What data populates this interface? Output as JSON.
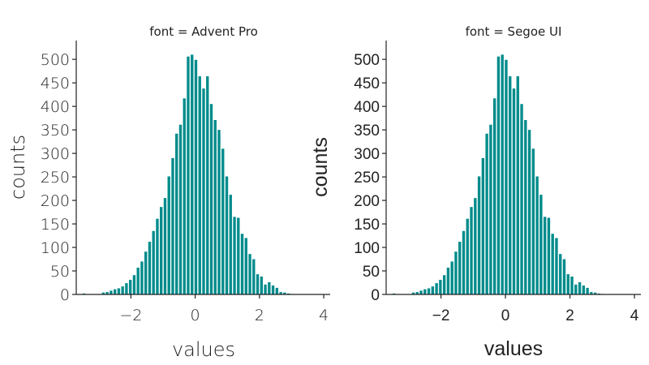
{
  "chart_data": [
    {
      "type": "bar",
      "title": "font = Advent Pro",
      "xlabel": "values",
      "ylabel": "counts",
      "color": "#008b8b",
      "xlim": [
        -3.7,
        4.2
      ],
      "ylim": [
        0,
        540
      ],
      "xticks": [
        "−2",
        "0",
        "2",
        "4"
      ],
      "xtick_values": [
        -2,
        0,
        2,
        4
      ],
      "yticks": [
        "0",
        "50",
        "100",
        "150",
        "200",
        "250",
        "300",
        "350",
        "400",
        "450",
        "500"
      ],
      "ytick_values": [
        0,
        50,
        100,
        150,
        200,
        250,
        300,
        350,
        400,
        450,
        500
      ],
      "grid": false,
      "bin_start": -3.5,
      "bin_width": 0.12,
      "values": [
        2,
        0,
        0,
        0,
        0,
        4,
        5,
        8,
        11,
        13,
        17,
        24,
        31,
        41,
        57,
        70,
        91,
        112,
        135,
        161,
        186,
        205,
        251,
        290,
        342,
        361,
        417,
        506,
        510,
        499,
        464,
        438,
        464,
        405,
        371,
        350,
        310,
        251,
        212,
        165,
        163,
        129,
        120,
        86,
        75,
        43,
        38,
        21,
        26,
        19,
        14,
        5,
        4,
        2,
        1,
        0
      ]
    },
    {
      "type": "bar",
      "title": "font = Segoe UI",
      "xlabel": "values",
      "ylabel": "counts",
      "color": "#008b8b",
      "xlim": [
        -3.7,
        4.2
      ],
      "ylim": [
        0,
        540
      ],
      "xticks": [
        "−2",
        "0",
        "2",
        "4"
      ],
      "xtick_values": [
        -2,
        0,
        2,
        4
      ],
      "yticks": [
        "0",
        "50",
        "100",
        "150",
        "200",
        "250",
        "300",
        "350",
        "400",
        "450",
        "500"
      ],
      "ytick_values": [
        0,
        50,
        100,
        150,
        200,
        250,
        300,
        350,
        400,
        450,
        500
      ],
      "grid": false,
      "bin_start": -3.5,
      "bin_width": 0.12,
      "values": [
        2,
        0,
        0,
        0,
        0,
        4,
        5,
        8,
        11,
        13,
        17,
        24,
        31,
        41,
        57,
        70,
        91,
        112,
        135,
        161,
        186,
        205,
        251,
        290,
        342,
        361,
        417,
        506,
        510,
        499,
        464,
        438,
        464,
        405,
        371,
        350,
        310,
        251,
        212,
        165,
        163,
        129,
        120,
        86,
        75,
        43,
        38,
        21,
        26,
        19,
        14,
        5,
        4,
        2,
        1,
        0
      ]
    }
  ]
}
